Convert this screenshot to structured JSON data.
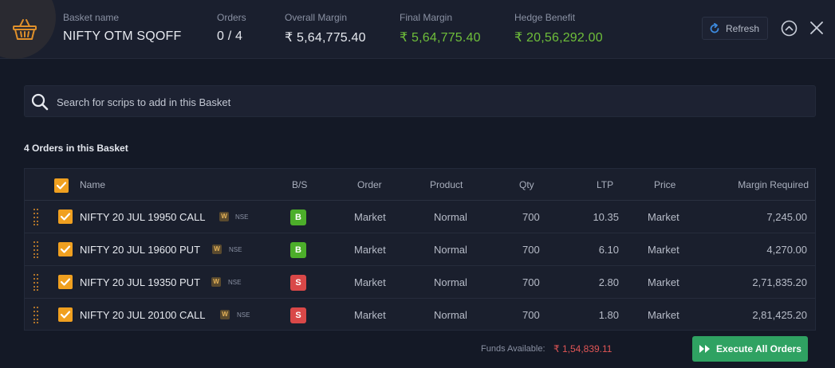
{
  "header": {
    "basket_name_label": "Basket name",
    "basket_name": "NIFTY OTM SQOFF",
    "orders_label": "Orders",
    "orders_value": "0 / 4",
    "overall_margin_label": "Overall Margin",
    "overall_margin": "₹ 5,64,775.40",
    "final_margin_label": "Final Margin",
    "final_margin": "₹ 5,64,775.40",
    "hedge_label": "Hedge Benefit",
    "hedge_value": "₹ 20,56,292.00",
    "refresh_label": "Refresh"
  },
  "search": {
    "placeholder": "Search for scrips to add in this Basket"
  },
  "orders_count_text": "4 Orders in this Basket",
  "table": {
    "headers": {
      "name": "Name",
      "bs": "B/S",
      "order": "Order",
      "product": "Product",
      "qty": "Qty",
      "ltp": "LTP",
      "price": "Price",
      "margin": "Margin Required"
    },
    "rows": [
      {
        "name": "NIFTY 20 JUL 19950 CALL",
        "w": "W",
        "exchange": "NSE",
        "bs": "B",
        "order": "Market",
        "product": "Normal",
        "qty": "700",
        "ltp": "10.35",
        "price": "Market",
        "margin": "7,245.00"
      },
      {
        "name": "NIFTY 20 JUL 19600 PUT",
        "w": "W",
        "exchange": "NSE",
        "bs": "B",
        "order": "Market",
        "product": "Normal",
        "qty": "700",
        "ltp": "6.10",
        "price": "Market",
        "margin": "4,270.00"
      },
      {
        "name": "NIFTY 20 JUL 19350 PUT",
        "w": "W",
        "exchange": "NSE",
        "bs": "S",
        "order": "Market",
        "product": "Normal",
        "qty": "700",
        "ltp": "2.80",
        "price": "Market",
        "margin": "2,71,835.20"
      },
      {
        "name": "NIFTY 20 JUL 20100 CALL",
        "w": "W",
        "exchange": "NSE",
        "bs": "S",
        "order": "Market",
        "product": "Normal",
        "qty": "700",
        "ltp": "1.80",
        "price": "Market",
        "margin": "2,81,425.20"
      }
    ]
  },
  "footer": {
    "funds_label": "Funds Available:",
    "funds_value": "₹ 1,54,839.11",
    "execute_label": "Execute All Orders"
  },
  "colors": {
    "accent_orange": "#f0a020",
    "buy_green": "#4cae2a",
    "sell_red": "#d94848",
    "execute_green": "#2fa262",
    "margin_green": "#6fbf3a"
  },
  "icons": [
    "basket-icon",
    "refresh-icon",
    "chevron-up-icon",
    "close-icon",
    "search-icon",
    "drag-handle-icon",
    "checkbox-icon",
    "fast-forward-icon"
  ]
}
